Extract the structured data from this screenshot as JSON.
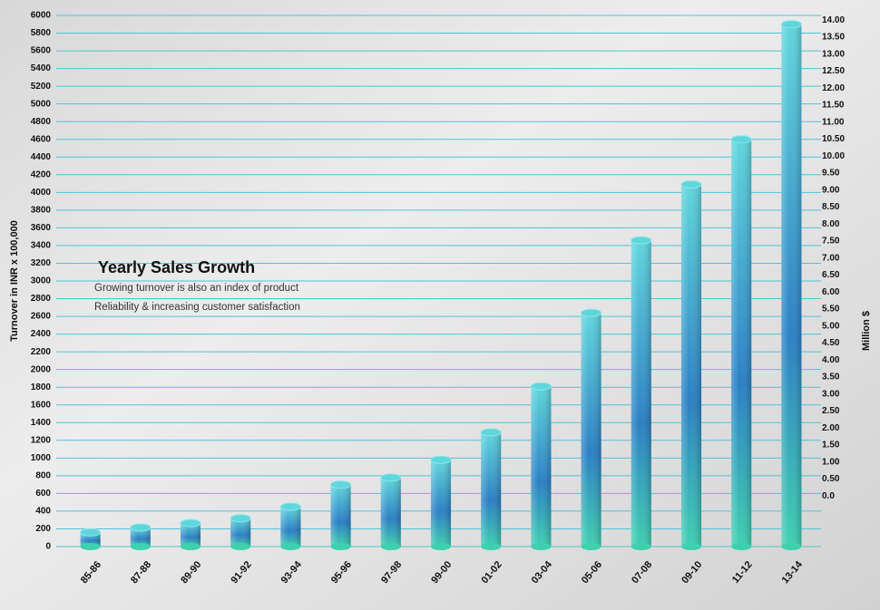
{
  "chart_data": {
    "type": "bar",
    "title": "Yearly Sales Growth",
    "subtitle": [
      "Growing turnover is also an index of product",
      "Reliability & increasing customer satisfaction"
    ],
    "y_label": "Turnover in INR x 100,000",
    "y2_label": "Million $",
    "categories": [
      "85-86",
      "87-88",
      "89-90",
      "91-92",
      "93-94",
      "95-96",
      "97-98",
      "99-00",
      "01-02",
      "03-04",
      "05-06",
      "07-08",
      "09-10",
      "11-12",
      "13-14"
    ],
    "values": [
      160,
      215,
      265,
      320,
      450,
      700,
      780,
      980,
      1290,
      1810,
      2640,
      3460,
      4090,
      4600,
      5900
    ],
    "colors": {
      "top": "#5fd6dc",
      "middle": "#2a7fc4",
      "bottom": "#3fd0b0",
      "grid": "#4fc3d6"
    },
    "ylim": [
      0,
      6000
    ],
    "yticks": [
      0,
      200,
      400,
      600,
      800,
      1000,
      1200,
      1400,
      1600,
      1800,
      2000,
      2200,
      2400,
      2600,
      2800,
      3000,
      3200,
      3400,
      3600,
      3800,
      4000,
      4200,
      4400,
      4600,
      4800,
      5000,
      5200,
      5400,
      5600,
      5800,
      6000
    ],
    "y2lim": [
      -1.49,
      14.14
    ],
    "y2ticks": [
      {
        "value": 0,
        "label": "0.0"
      },
      {
        "value": 0.5,
        "label": "0.50"
      },
      {
        "value": 1,
        "label": "1.00"
      },
      {
        "value": 1.5,
        "label": "1.50"
      },
      {
        "value": 2,
        "label": "2.00"
      },
      {
        "value": 2.5,
        "label": "2.50"
      },
      {
        "value": 3,
        "label": "3.00"
      },
      {
        "value": 3.5,
        "label": "3.50"
      },
      {
        "value": 4,
        "label": "4.00"
      },
      {
        "value": 4.5,
        "label": "4.50"
      },
      {
        "value": 5,
        "label": "5.00"
      },
      {
        "value": 5.5,
        "label": "5.50"
      },
      {
        "value": 6,
        "label": "6.00"
      },
      {
        "value": 6.5,
        "label": "6.50"
      },
      {
        "value": 7,
        "label": "7.00"
      },
      {
        "value": 7.5,
        "label": "7.50"
      },
      {
        "value": 8,
        "label": "8.00"
      },
      {
        "value": 8.5,
        "label": "8.50"
      },
      {
        "value": 9,
        "label": "9.00"
      },
      {
        "value": 9.5,
        "label": "9.50"
      },
      {
        "value": 10,
        "label": "10.00"
      },
      {
        "value": 10.5,
        "label": "10.50"
      },
      {
        "value": 11,
        "label": "11.00"
      },
      {
        "value": 11.5,
        "label": "11.50"
      },
      {
        "value": 12,
        "label": "12.00"
      },
      {
        "value": 12.5,
        "label": "12.50"
      },
      {
        "value": 13,
        "label": "13.00"
      },
      {
        "value": 13.5,
        "label": "13.50"
      },
      {
        "value": 14,
        "label": "14.00"
      }
    ],
    "grid": true
  }
}
